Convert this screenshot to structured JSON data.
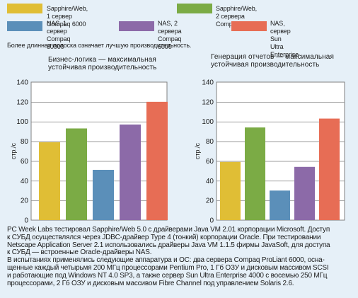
{
  "legend": [
    {
      "label": "Sapphire/Web, 1 сервер Compaq 6000",
      "color": "#e0be35"
    },
    {
      "label": "Sapphire/Web, 2 сервера Compaq 6000",
      "color": "#7bab45"
    },
    {
      "label": "NAS, 1 сервер\nCompaq 60000",
      "color": "#5b8fb9"
    },
    {
      "label": "NAS, 2 сервера\nCompaq 6000",
      "color": "#8c6aa8"
    },
    {
      "label": "NAS, сервер Sun\nUltra Enterprise",
      "color": "#e76d55"
    }
  ],
  "note": "Более длинная полоска означает лучшую производительность.",
  "chart_data": [
    {
      "type": "bar",
      "title": "Бизнес-логика — максимальная\nустойчивая производительность",
      "ylabel": "стр./с",
      "ylim": [
        0,
        140
      ],
      "yticks": [
        "0",
        "20",
        "40",
        "60",
        "80",
        "100",
        "120",
        "140"
      ],
      "grid": true,
      "categories": [
        "Sapphire/Web, 1 сервер Compaq 6000",
        "Sapphire/Web, 2 сервера Compaq 6000",
        "NAS, 1 сервер Compaq 60000",
        "NAS, 2 сервера Compaq 6000",
        "NAS, сервер Sun Ultra Enterprise"
      ],
      "values": [
        79,
        93,
        51,
        97,
        120
      ]
    },
    {
      "type": "bar",
      "title": "Генерация отчетов — максимальная\nустойчивая производительность",
      "ylabel": "стр./с",
      "ylim": [
        0,
        140
      ],
      "yticks": [
        "0",
        "20",
        "40",
        "60",
        "80",
        "100",
        "120",
        "140"
      ],
      "grid": true,
      "categories": [
        "Sapphire/Web, 1 сервер Compaq 6000",
        "Sapphire/Web, 2 сервера Compaq 6000",
        "NAS, 1 сервер Compaq 60000",
        "NAS, 2 сервера Compaq 6000",
        "NAS, сервер Sun Ultra Enterprise"
      ],
      "values": [
        59,
        94,
        30,
        54,
        103
      ]
    }
  ],
  "body_text": "PC Week Labs тестировал Sapphire/Web 5.0 с драйверами Java VM 2.01 корпорации Microsoft. Доступ\nк СУБД осуществлялся через JDBC-драйвер Type 4 (тонкий) корпорации Oracle. При тестировании\nNetscape Application Server 2.1 использовались драйверы Java VM 1.1.5 фирмы JavaSoft, для доступа\nк СУБД — встроенные Oracle-драйверы NAS.\nВ испытаниях применялись следующие аппаратура и ОС: два сервера Compaq ProLiant 6000, осна-\nщенные каждый четырьмя 200 МГц процессорами Pentium Pro, 1 Гб ОЗУ и дисковым массивом SCSI\nи работающие под Windows NT 4.0 SP3, а также сервер Sun Ultra Enterprise 4000 с восемью 250 МГц\nпроцессорами, 2 Гб ОЗУ и дисковым массивом Fibre Channel под управлением Solaris 2.6."
}
